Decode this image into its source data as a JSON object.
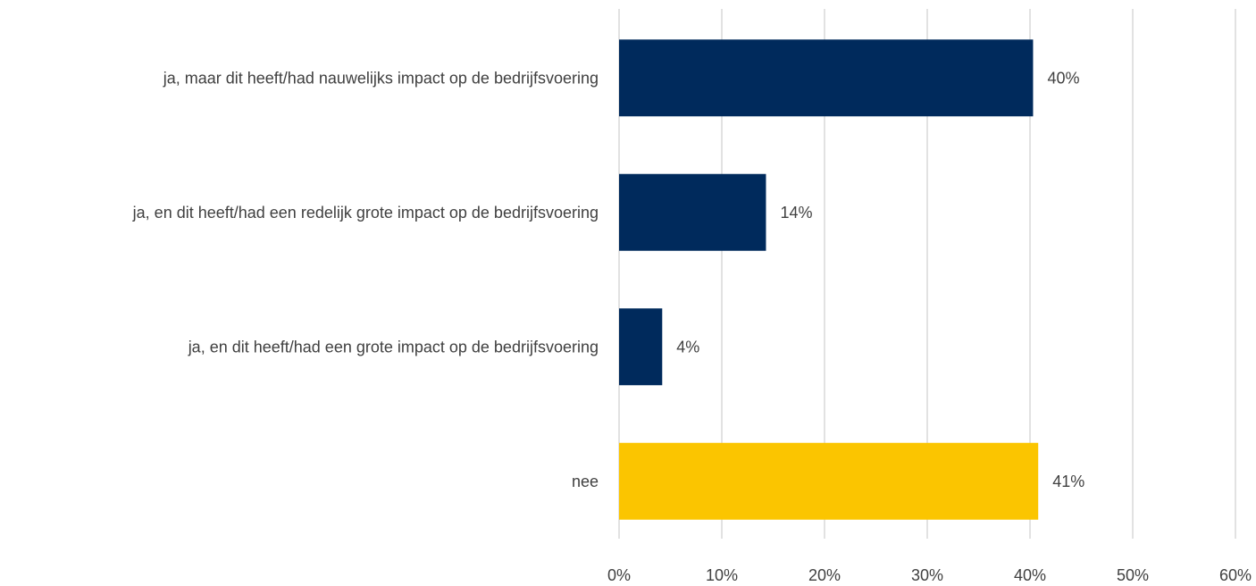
{
  "chart_data": {
    "type": "bar",
    "orientation": "horizontal",
    "categories": [
      "ja, maar dit heeft/had nauwelijks impact op de bedrijfsvoering",
      "ja, en dit heeft/had een redelijk grote impact op de bedrijfsvoering",
      "ja, en dit heeft/had een grote impact op de bedrijfsvoering",
      "nee"
    ],
    "values": [
      40.3,
      14.3,
      4.2,
      40.8
    ],
    "value_labels": [
      "40%",
      "14%",
      "4%",
      "41%"
    ],
    "bar_colors": [
      "#002a5c",
      "#002a5c",
      "#002a5c",
      "#fbc500"
    ],
    "xlim": [
      0,
      60
    ],
    "x_ticks": [
      0,
      10,
      20,
      30,
      40,
      50,
      60
    ],
    "x_tick_labels": [
      "0%",
      "10%",
      "20%",
      "30%",
      "40%",
      "50%",
      "60%"
    ],
    "grid": true,
    "title": "",
    "xlabel": "",
    "ylabel": ""
  }
}
